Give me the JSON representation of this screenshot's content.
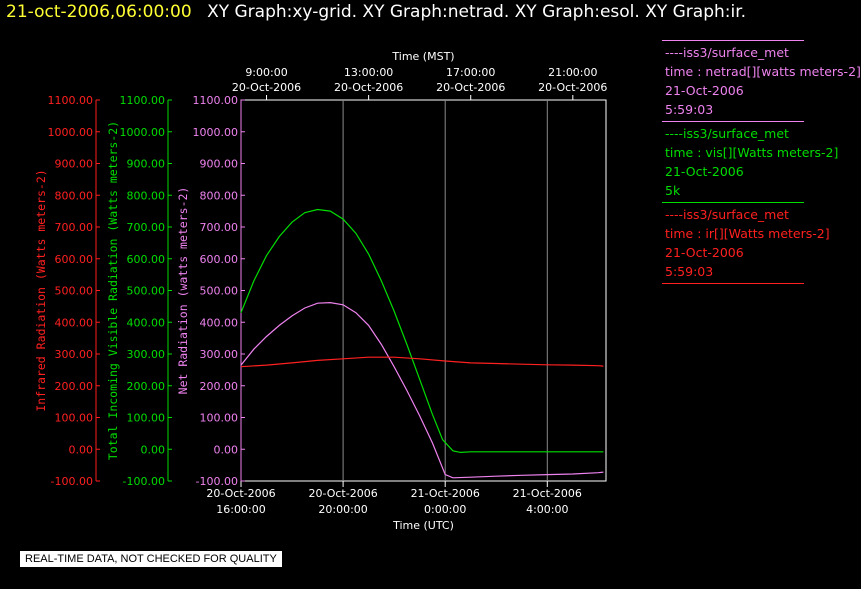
{
  "header": {
    "timestamp": "21-oct-2006,06:00:00",
    "titles": "XY Graph:xy-grid.  XY Graph:netrad.  XY Graph:esol.  XY Graph:ir."
  },
  "legend": [
    {
      "name": "----iss3/surface_met",
      "var": "time : netrad[][watts meters-2]",
      "date": "21-Oct-2006",
      "time": "5:59:03",
      "color": "#ee82ee"
    },
    {
      "name": "----iss3/surface_met",
      "var": "time : vis[][Watts meters-2]",
      "date": "21-Oct-2006",
      "time": "5k",
      "color": "#00dd00"
    },
    {
      "name": "----iss3/surface_met",
      "var": "time : ir[][Watts meters-2]",
      "date": "21-Oct-2006",
      "time": "5:59:03",
      "color": "#ff2020"
    }
  ],
  "note": "REAL-TIME DATA, NOT CHECKED FOR QUALITY",
  "chart_data": {
    "type": "line",
    "grid": true,
    "top_axis": {
      "title": "Time (MST)",
      "ticks": [
        {
          "t": 17,
          "line1": "9:00:00",
          "line2": "20-Oct-2006"
        },
        {
          "t": 21,
          "line1": "13:00:00",
          "line2": "20-Oct-2006"
        },
        {
          "t": 25,
          "line1": "17:00:00",
          "line2": "20-Oct-2006"
        },
        {
          "t": 29,
          "line1": "21:00:00",
          "line2": "20-Oct-2006"
        }
      ]
    },
    "bottom_axis": {
      "title": "Time (UTC)",
      "ticks": [
        {
          "t": 16,
          "line1": "20-Oct-2006",
          "line2": "16:00:00"
        },
        {
          "t": 20,
          "line1": "20-Oct-2006",
          "line2": "20:00:00"
        },
        {
          "t": 24,
          "line1": "21-Oct-2006",
          "line2": "0:00:00"
        },
        {
          "t": 28,
          "line1": "21-Oct-2006",
          "line2": "4:00:00"
        }
      ]
    },
    "xlim": [
      16,
      30.3
    ],
    "ylim": [
      -100,
      1100
    ],
    "yticks": [
      -100,
      0,
      100,
      200,
      300,
      400,
      500,
      600,
      700,
      800,
      900,
      1000,
      1100
    ],
    "y_axes": [
      {
        "label": "Infrared Radiation (Watts meters-2)",
        "color": "#ff2020"
      },
      {
        "label": "Total Incoming Visible Radiation (Watts meters-2)",
        "color": "#00dd00"
      },
      {
        "label": "Net Radiation (watts meters-2)",
        "color": "#ee82ee"
      }
    ],
    "series": [
      {
        "name": "netrad",
        "color": "#ee82ee",
        "x": [
          16.0,
          16.5,
          17.0,
          17.5,
          18.0,
          18.5,
          19.0,
          19.5,
          20.0,
          20.5,
          21.0,
          21.5,
          22.0,
          22.5,
          23.0,
          23.5,
          23.8,
          24.0,
          24.3,
          25.0,
          26.0,
          27.0,
          28.0,
          29.0,
          30.0,
          30.2
        ],
        "y": [
          265,
          315,
          355,
          390,
          420,
          445,
          460,
          462,
          455,
          430,
          390,
          330,
          260,
          185,
          105,
          20,
          -40,
          -80,
          -90,
          -88,
          -85,
          -82,
          -80,
          -78,
          -74,
          -72
        ]
      },
      {
        "name": "vis",
        "color": "#00dd00",
        "x": [
          16.0,
          16.5,
          17.0,
          17.5,
          18.0,
          18.5,
          19.0,
          19.5,
          20.0,
          20.5,
          21.0,
          21.5,
          22.0,
          22.5,
          23.0,
          23.5,
          23.9,
          24.3,
          24.6,
          25.0,
          26.0,
          27.0,
          28.0,
          29.0,
          30.0,
          30.2
        ],
        "y": [
          430,
          530,
          610,
          670,
          715,
          745,
          755,
          750,
          725,
          680,
          615,
          530,
          435,
          330,
          220,
          110,
          30,
          -5,
          -10,
          -8,
          -8,
          -8,
          -8,
          -8,
          -8,
          -8
        ]
      },
      {
        "name": "ir",
        "color": "#ff2020",
        "x": [
          16.0,
          17.0,
          18.0,
          19.0,
          20.0,
          21.0,
          22.0,
          23.0,
          24.0,
          25.0,
          26.0,
          27.0,
          28.0,
          29.0,
          30.0,
          30.2
        ],
        "y": [
          260,
          265,
          272,
          280,
          285,
          290,
          290,
          285,
          278,
          272,
          270,
          268,
          266,
          265,
          263,
          262
        ]
      }
    ]
  }
}
